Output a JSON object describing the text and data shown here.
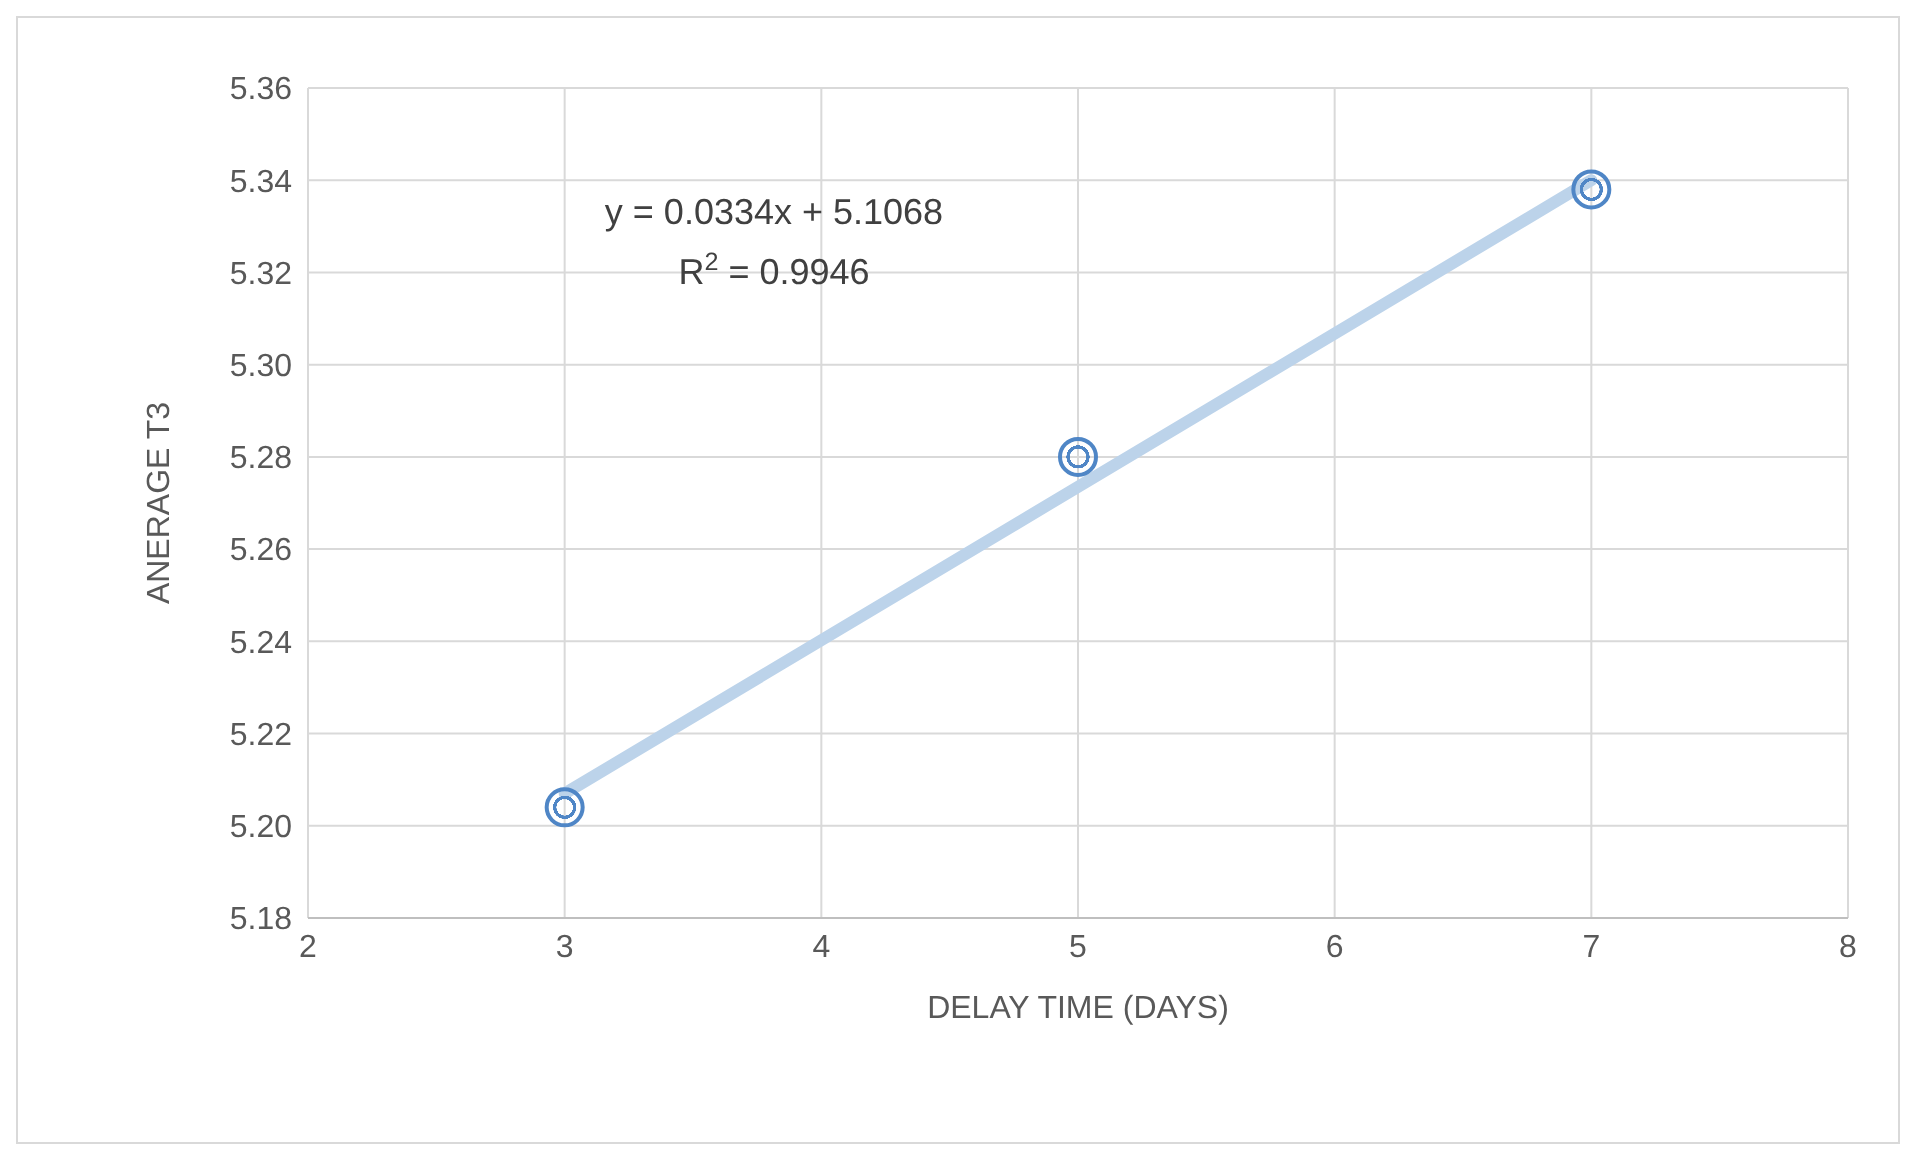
{
  "chart_data": {
    "type": "scatter",
    "xlabel": "DELAY TIME (DAYS)",
    "ylabel": "ANERAGE T3",
    "annotations": [
      "y = 0.0334x + 5.1068",
      "R$^{2}$ = 0.9946"
    ],
    "series": [
      {
        "type": "line",
        "color": "#bcd3ea",
        "x": [
          3,
          7
        ],
        "values": [
          5.207,
          5.34
        ]
      },
      {
        "color": "#4f86c6",
        "x": [
          3,
          5,
          7
        ],
        "values": [
          5.204,
          5.28,
          5.338
        ],
        "marker": "circle"
      }
    ],
    "xlim": [
      2,
      8
    ],
    "xticks": [
      2,
      3,
      4,
      5,
      6,
      7,
      8
    ],
    "ylim": [
      5.18,
      5.36
    ],
    "yticks": [
      {
        "value": 5.18,
        "label": "5.18"
      },
      {
        "value": 5.2,
        "label": "5.20"
      },
      {
        "value": 5.22,
        "label": "5.22"
      },
      {
        "value": 5.24,
        "label": "5.24"
      },
      {
        "value": 5.26,
        "label": "5.26"
      },
      {
        "value": 5.28,
        "label": "5.28"
      },
      {
        "value": 5.3,
        "label": "5.30"
      },
      {
        "value": 5.32,
        "label": "5.32"
      },
      {
        "value": 5.34,
        "label": "5.34"
      },
      {
        "value": 5.36,
        "label": "5.36"
      }
    ],
    "grid": true
  }
}
